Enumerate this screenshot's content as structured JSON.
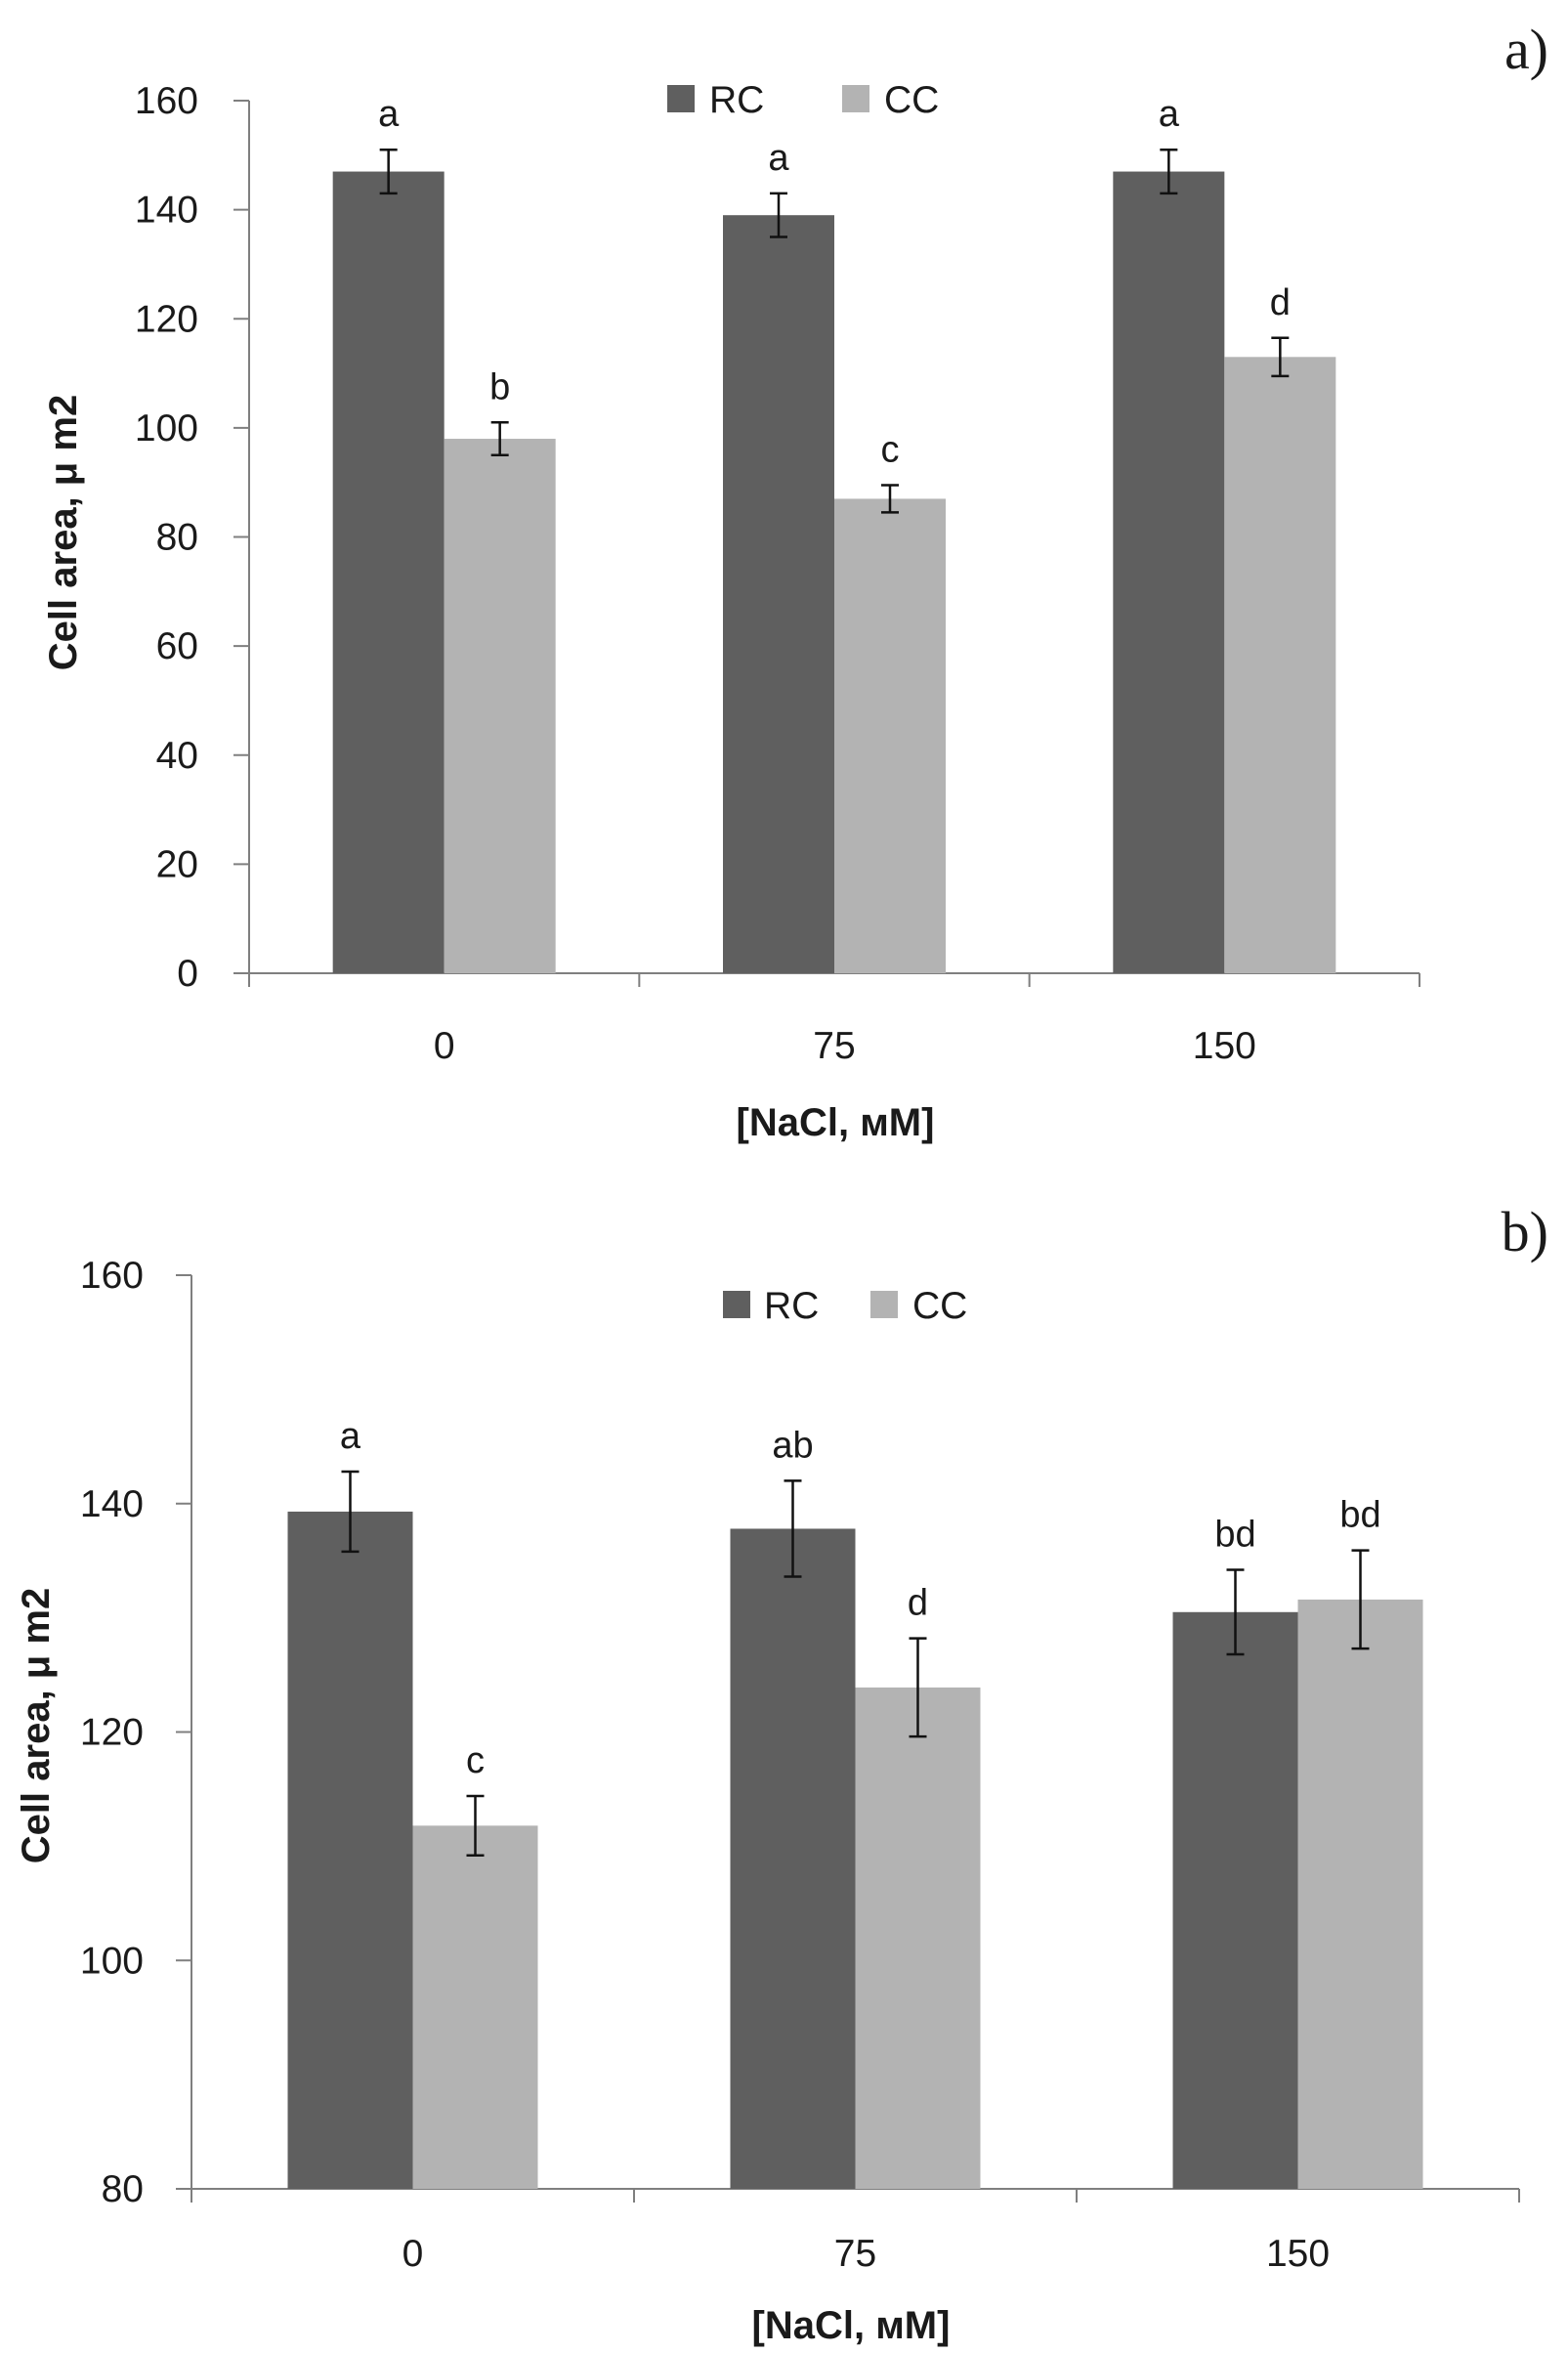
{
  "colors": {
    "RC": "#5f5f5f",
    "CC": "#b3b3b3",
    "axis": "#7f7f7f",
    "text": "#1a1a1a"
  },
  "chart_data": [
    {
      "panel": "a)",
      "type": "bar",
      "xlabel": "[NaCl, мМ]",
      "ylabel": "Cell area, μ m2",
      "ylim": [
        0,
        160
      ],
      "yticks": [
        "0",
        "20",
        "40",
        "60",
        "80",
        "100",
        "120",
        "140",
        "160"
      ],
      "categories": [
        "0",
        "75",
        "150"
      ],
      "legend": [
        "RC",
        "CC"
      ],
      "legend_position": "top-center",
      "grid": false,
      "series": [
        {
          "name": "RC",
          "values": [
            147,
            139,
            147
          ],
          "errors": [
            4,
            4,
            4
          ],
          "letters": [
            "a",
            "a",
            "a"
          ]
        },
        {
          "name": "CC",
          "values": [
            98,
            87,
            113
          ],
          "errors": [
            3,
            2.5,
            3.5
          ],
          "letters": [
            "b",
            "c",
            "d"
          ]
        }
      ]
    },
    {
      "panel": "b)",
      "type": "bar",
      "xlabel": "[NaCl, мМ]",
      "ylabel": "Cell area, μ m2",
      "ylim": [
        80,
        160
      ],
      "yticks": [
        "80",
        "100",
        "120",
        "140",
        "160"
      ],
      "categories": [
        "0",
        "75",
        "150"
      ],
      "legend": [
        "RC",
        "CC"
      ],
      "legend_position": "top-center",
      "grid": false,
      "series": [
        {
          "name": "RC",
          "values": [
            139.3,
            137.8,
            130.5
          ],
          "errors": [
            3.5,
            4.2,
            3.7
          ],
          "letters": [
            "a",
            "ab",
            "bd"
          ]
        },
        {
          "name": "CC",
          "values": [
            111.8,
            123.9,
            131.6
          ],
          "errors": [
            2.6,
            4.3,
            4.3
          ],
          "letters": [
            "c",
            "d",
            "bd"
          ]
        }
      ]
    }
  ]
}
